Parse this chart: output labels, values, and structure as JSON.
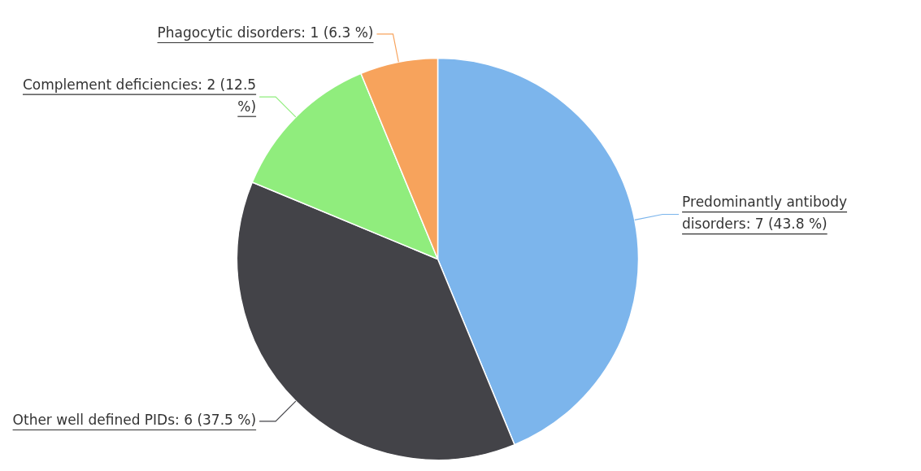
{
  "chart_data": {
    "type": "pie",
    "categories": [
      "Predominantly antibody disorders",
      "Other well defined PIDs",
      "Complement deficiencies",
      "Phagocytic disorders"
    ],
    "values": [
      7,
      6,
      2,
      1
    ],
    "colors": [
      "#7cb5ec",
      "#434348",
      "#90ed7d",
      "#f7a35c"
    ],
    "value_labels": [
      "7 (43.8 %)",
      "6 (37.5 %)",
      "2 (12.5 %)",
      "1 (6.3 %)"
    ],
    "legend": false
  }
}
